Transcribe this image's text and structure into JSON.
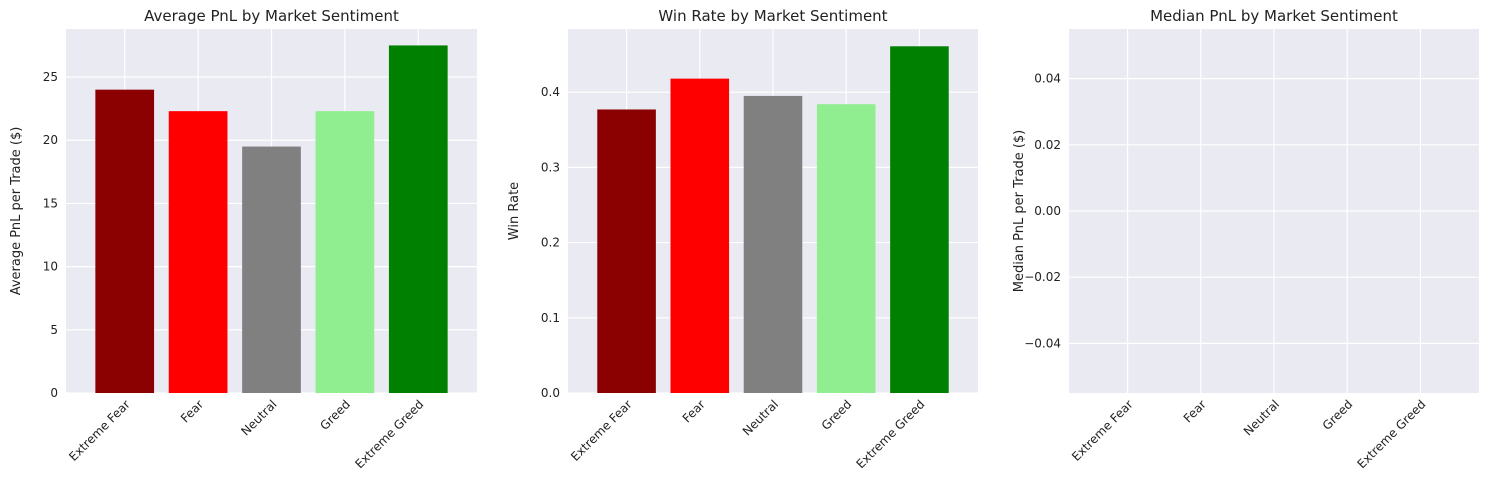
{
  "chart_data": [
    {
      "type": "bar",
      "title": "Average PnL by Market Sentiment",
      "xlabel": "",
      "ylabel": "Average PnL per Trade ($)",
      "categories": [
        "Extreme Fear",
        "Fear",
        "Neutral",
        "Greed",
        "Extreme Greed"
      ],
      "values": [
        24.0,
        22.3,
        19.5,
        22.3,
        27.5
      ],
      "colors": [
        "#8b0000",
        "#ff0000",
        "#808080",
        "#90ee90",
        "#008000"
      ],
      "ylim": [
        0,
        28.8
      ],
      "yticks": [
        0,
        5,
        10,
        15,
        20,
        25
      ],
      "ytick_labels": [
        "0",
        "5",
        "10",
        "15",
        "20",
        "25"
      ],
      "grid": true
    },
    {
      "type": "bar",
      "title": "Win Rate by Market Sentiment",
      "xlabel": "",
      "ylabel": "Win Rate",
      "categories": [
        "Extreme Fear",
        "Fear",
        "Neutral",
        "Greed",
        "Extreme Greed"
      ],
      "values": [
        0.377,
        0.418,
        0.395,
        0.384,
        0.461
      ],
      "colors": [
        "#8b0000",
        "#ff0000",
        "#808080",
        "#90ee90",
        "#008000"
      ],
      "ylim": [
        0,
        0.484
      ],
      "yticks": [
        0,
        0.1,
        0.2,
        0.3,
        0.4
      ],
      "ytick_labels": [
        "0.0",
        "0.1",
        "0.2",
        "0.3",
        "0.4"
      ],
      "grid": true
    },
    {
      "type": "bar",
      "title": "Median PnL by Market Sentiment",
      "xlabel": "",
      "ylabel": "Median PnL per Trade ($)",
      "categories": [
        "Extreme Fear",
        "Fear",
        "Neutral",
        "Greed",
        "Extreme Greed"
      ],
      "values": [
        0,
        0,
        0,
        0,
        0
      ],
      "colors": [
        "#8b0000",
        "#ff0000",
        "#808080",
        "#90ee90",
        "#008000"
      ],
      "ylim": [
        -0.055,
        0.055
      ],
      "yticks": [
        -0.04,
        -0.02,
        0,
        0.02,
        0.04
      ],
      "ytick_labels": [
        "−0.04",
        "−0.02",
        "0.00",
        "0.02",
        "0.04"
      ],
      "grid": true
    }
  ]
}
